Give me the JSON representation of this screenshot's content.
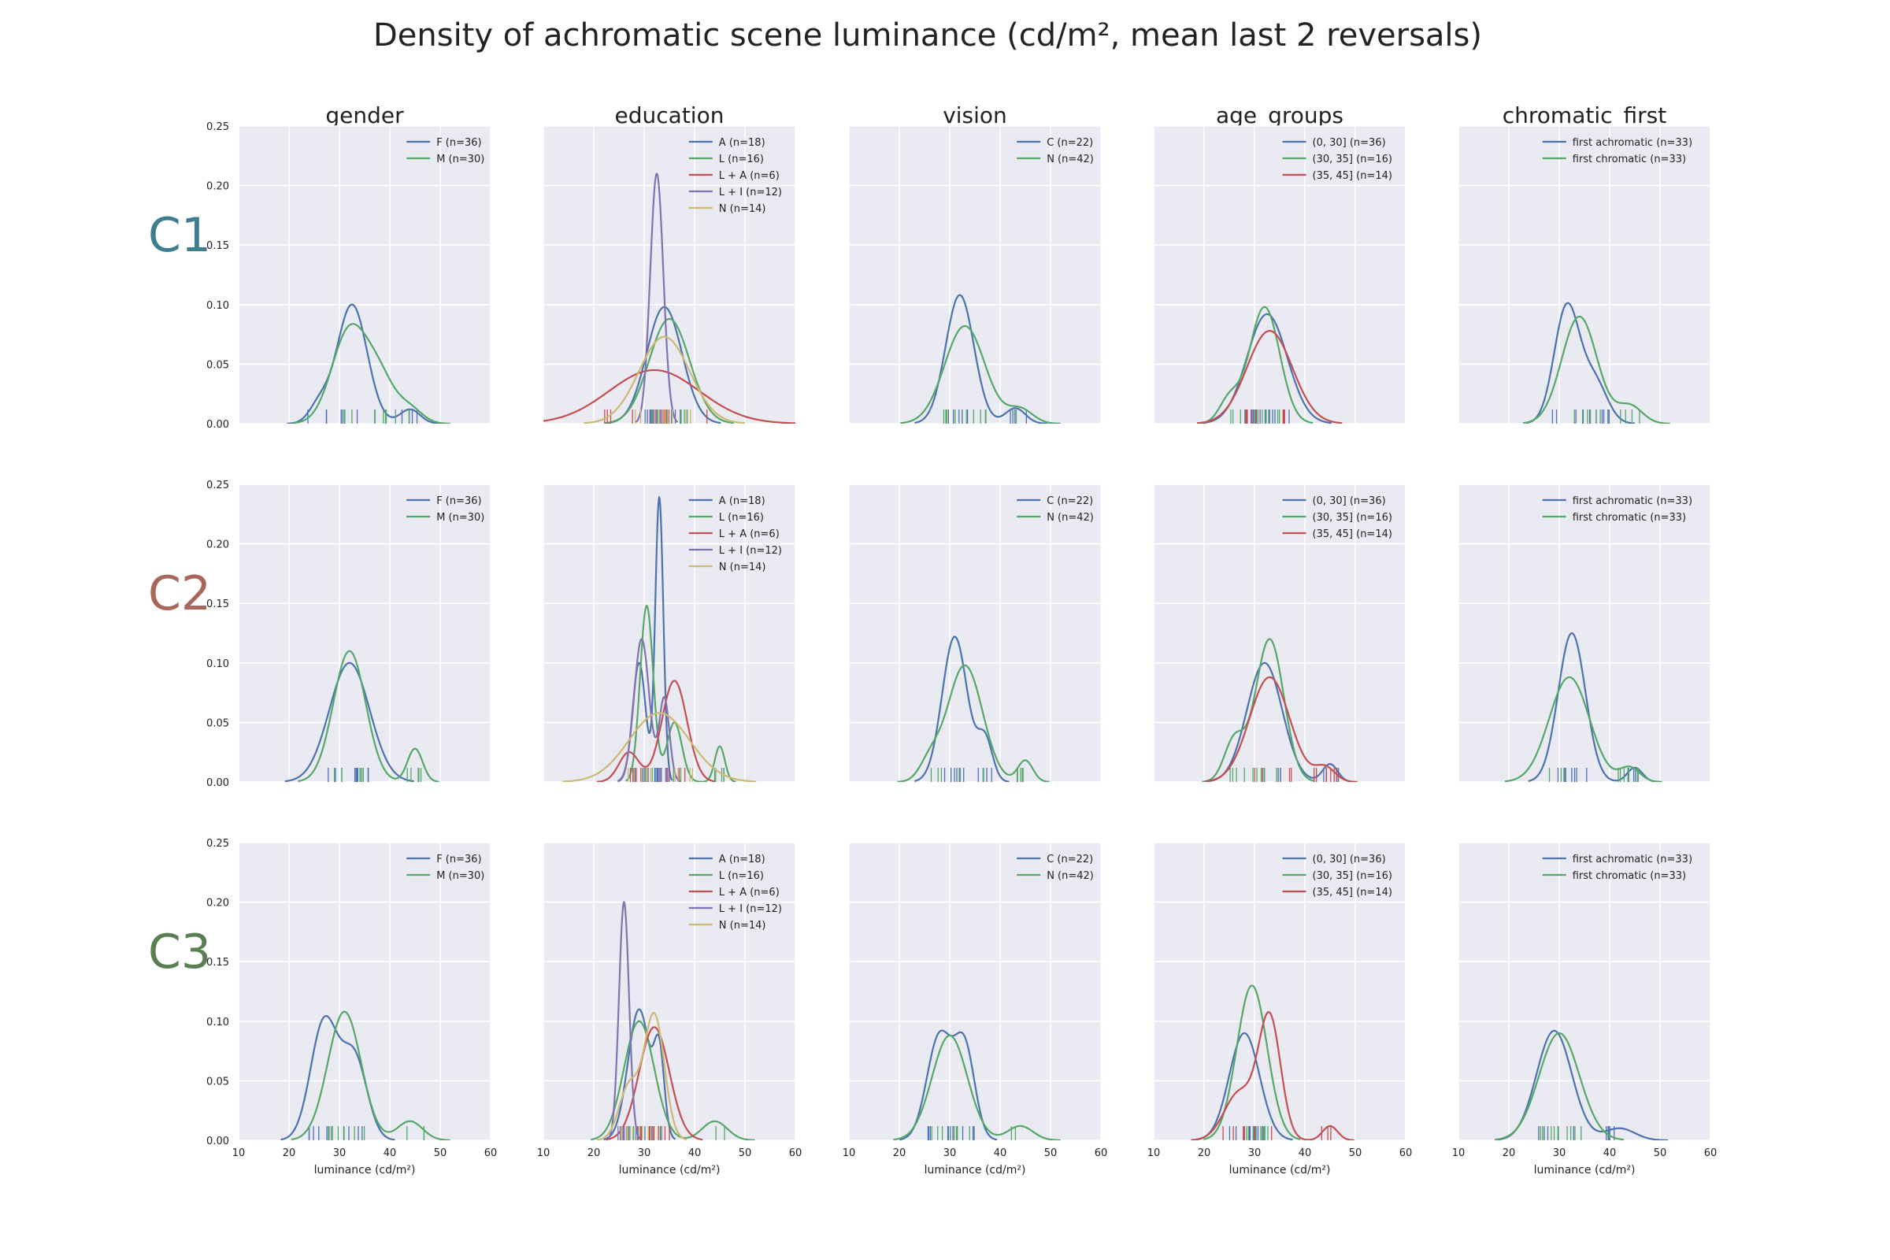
{
  "figure": {
    "title": "Density of achromatic scene luminance (cd/m², mean last 2 reversals)",
    "columns": [
      "gender",
      "education",
      "vision",
      "age_groups",
      "chromatic_first"
    ],
    "rows": [
      {
        "label": "C1",
        "color": "#3e7f8f"
      },
      {
        "label": "C2",
        "color": "#a8675a"
      },
      {
        "label": "C3",
        "color": "#5a7f52"
      }
    ],
    "xlabel": "luminance (cd/m²)",
    "xticks": [
      10,
      20,
      30,
      40,
      50,
      60
    ],
    "yticks": [
      "0.00",
      "0.05",
      "0.10",
      "0.15",
      "0.20",
      "0.25"
    ],
    "xlim": [
      10,
      60
    ],
    "ylim": [
      0,
      0.25
    ],
    "background": "#eaeaf2",
    "grid": true,
    "legend_placement": "upper right"
  },
  "chart_data": [
    {
      "type": "line",
      "row": "C1",
      "column": "gender",
      "series": [
        {
          "name": "F (n=36)",
          "color": "#4c72b0",
          "peaks": [
            [
              26,
              0.015,
              2
            ],
            [
              32.5,
              0.1,
              3
            ],
            [
              44,
              0.012,
              2
            ]
          ]
        },
        {
          "name": "M (n=30)",
          "color": "#55a868",
          "peaks": [
            [
              32,
              0.078,
              3.5
            ],
            [
              38,
              0.035,
              3
            ],
            [
              44,
              0.012,
              2.5
            ]
          ]
        }
      ]
    },
    {
      "type": "line",
      "row": "C1",
      "column": "education",
      "series": [
        {
          "name": "A (n=18)",
          "color": "#4c72b0",
          "peaks": [
            [
              34,
              0.098,
              3.5
            ]
          ]
        },
        {
          "name": "L (n=16)",
          "color": "#55a868",
          "peaks": [
            [
              35,
              0.088,
              4
            ]
          ]
        },
        {
          "name": "L + A (n=6)",
          "color": "#c44e52",
          "peaks": [
            [
              32,
              0.045,
              9
            ]
          ]
        },
        {
          "name": "L + I (n=12)",
          "color": "#8172b2",
          "peaks": [
            [
              32.5,
              0.21,
              1.3
            ]
          ]
        },
        {
          "name": "N (n=14)",
          "color": "#ccb974",
          "peaks": [
            [
              34,
              0.073,
              5
            ]
          ]
        }
      ]
    },
    {
      "type": "line",
      "row": "C1",
      "column": "vision",
      "series": [
        {
          "name": "C (n=22)",
          "color": "#4c72b0",
          "peaks": [
            [
              32,
              0.108,
              2.8
            ],
            [
              43,
              0.013,
              2
            ]
          ]
        },
        {
          "name": "N (n=42)",
          "color": "#55a868",
          "peaks": [
            [
              33,
              0.082,
              4
            ],
            [
              44,
              0.012,
              2.5
            ]
          ]
        }
      ]
    },
    {
      "type": "line",
      "row": "C1",
      "column": "age_groups",
      "series": [
        {
          "name": "(0, 30] (n=36)",
          "color": "#4c72b0",
          "peaks": [
            [
              32.5,
              0.092,
              4
            ]
          ]
        },
        {
          "name": "(30, 35] (n=16)",
          "color": "#55a868",
          "peaks": [
            [
              32,
              0.098,
              3
            ],
            [
              25,
              0.02,
              2
            ]
          ]
        },
        {
          "name": "(35, 45] (n=14)",
          "color": "#c44e52",
          "peaks": [
            [
              33,
              0.078,
              4.5
            ]
          ]
        }
      ]
    },
    {
      "type": "line",
      "row": "C1",
      "column": "chromatic_first",
      "series": [
        {
          "name": "first achromatic (n=33)",
          "color": "#4c72b0",
          "peaks": [
            [
              31.5,
              0.098,
              2.5
            ],
            [
              37,
              0.035,
              2.5
            ]
          ]
        },
        {
          "name": "first chromatic (n=33)",
          "color": "#55a868",
          "peaks": [
            [
              34,
              0.09,
              3.5
            ],
            [
              44,
              0.015,
              2.5
            ]
          ]
        }
      ]
    },
    {
      "type": "line",
      "row": "C2",
      "column": "gender",
      "series": [
        {
          "name": "F (n=36)",
          "color": "#4c72b0",
          "peaks": [
            [
              32,
              0.1,
              4
            ]
          ]
        },
        {
          "name": "M (n=30)",
          "color": "#55a868",
          "peaks": [
            [
              32,
              0.11,
              3.2
            ],
            [
              45,
              0.028,
              1.5
            ]
          ]
        }
      ]
    },
    {
      "type": "line",
      "row": "C2",
      "column": "education",
      "series": [
        {
          "name": "A (n=18)",
          "color": "#4c72b0",
          "peaks": [
            [
              33,
              0.238,
              0.8
            ],
            [
              29,
              0.1,
              1.3
            ]
          ]
        },
        {
          "name": "L (n=16)",
          "color": "#55a868",
          "peaks": [
            [
              30.5,
              0.148,
              1.3
            ],
            [
              36,
              0.05,
              1.5
            ],
            [
              45,
              0.03,
              1
            ]
          ]
        },
        {
          "name": "L + A (n=6)",
          "color": "#c44e52",
          "peaks": [
            [
              36,
              0.085,
              2.5
            ],
            [
              27,
              0.025,
              2
            ]
          ]
        },
        {
          "name": "L + I (n=12)",
          "color": "#8172b2",
          "peaks": [
            [
              29.5,
              0.12,
              1.5
            ],
            [
              34,
              0.07,
              1
            ]
          ]
        },
        {
          "name": "N (n=14)",
          "color": "#ccb974",
          "peaks": [
            [
              33,
              0.058,
              6
            ]
          ]
        }
      ]
    },
    {
      "type": "line",
      "row": "C2",
      "column": "vision",
      "series": [
        {
          "name": "C (n=22)",
          "color": "#4c72b0",
          "peaks": [
            [
              31,
              0.122,
              2.5
            ],
            [
              37,
              0.035,
              1.5
            ]
          ]
        },
        {
          "name": "N (n=42)",
          "color": "#55a868",
          "peaks": [
            [
              33,
              0.098,
              3.5
            ],
            [
              26,
              0.015,
              2
            ],
            [
              45,
              0.018,
              1.5
            ]
          ]
        }
      ]
    },
    {
      "type": "line",
      "row": "C2",
      "column": "age_groups",
      "series": [
        {
          "name": "(0, 30] (n=36)",
          "color": "#4c72b0",
          "peaks": [
            [
              32,
              0.1,
              3.5
            ],
            [
              45,
              0.015,
              1.5
            ]
          ]
        },
        {
          "name": "(30, 35] (n=16)",
          "color": "#55a868",
          "peaks": [
            [
              33,
              0.12,
              2.8
            ],
            [
              26,
              0.035,
              2
            ]
          ]
        },
        {
          "name": "(35, 45] (n=14)",
          "color": "#c44e52",
          "peaks": [
            [
              33,
              0.088,
              4
            ],
            [
              44,
              0.012,
              2
            ]
          ]
        }
      ]
    },
    {
      "type": "line",
      "row": "C2",
      "column": "chromatic_first",
      "series": [
        {
          "name": "first achromatic (n=33)",
          "color": "#4c72b0",
          "peaks": [
            [
              32.5,
              0.125,
              2.7
            ],
            [
              45,
              0.012,
              1.5
            ]
          ]
        },
        {
          "name": "first chromatic (n=33)",
          "color": "#55a868",
          "peaks": [
            [
              32,
              0.088,
              4
            ],
            [
              44,
              0.012,
              2
            ]
          ]
        }
      ]
    },
    {
      "type": "line",
      "row": "C3",
      "column": "gender",
      "series": [
        {
          "name": "F (n=36)",
          "color": "#4c72b0",
          "peaks": [
            [
              27,
              0.1,
              2.7
            ],
            [
              33,
              0.068,
              2.5
            ]
          ]
        },
        {
          "name": "M (n=30)",
          "color": "#55a868",
          "peaks": [
            [
              31,
              0.108,
              3.3
            ],
            [
              44,
              0.016,
              2.5
            ]
          ]
        }
      ]
    },
    {
      "type": "line",
      "row": "C3",
      "column": "education",
      "series": [
        {
          "name": "A (n=18)",
          "color": "#4c72b0",
          "peaks": [
            [
              29,
              0.11,
              2.2
            ],
            [
              33,
              0.065,
              1
            ]
          ]
        },
        {
          "name": "L (n=16)",
          "color": "#55a868",
          "peaks": [
            [
              29,
              0.1,
              3
            ],
            [
              44,
              0.016,
              2.5
            ]
          ]
        },
        {
          "name": "L + A (n=6)",
          "color": "#c44e52",
          "peaks": [
            [
              32,
              0.095,
              3
            ]
          ]
        },
        {
          "name": "L + I (n=12)",
          "color": "#8172b2",
          "peaks": [
            [
              26,
              0.2,
              1
            ]
          ]
        },
        {
          "name": "N (n=14)",
          "color": "#ccb974",
          "peaks": [
            [
              32,
              0.105,
              2
            ],
            [
              27,
              0.045,
              2
            ]
          ]
        }
      ]
    },
    {
      "type": "line",
      "row": "C3",
      "column": "vision",
      "series": [
        {
          "name": "C (n=22)",
          "color": "#4c72b0",
          "peaks": [
            [
              28,
              0.088,
              2.5
            ],
            [
              33,
              0.075,
              2
            ]
          ]
        },
        {
          "name": "N (n=42)",
          "color": "#55a868",
          "peaks": [
            [
              30,
              0.088,
              3.5
            ],
            [
              44,
              0.012,
              2.5
            ]
          ]
        }
      ]
    },
    {
      "type": "line",
      "row": "C3",
      "column": "age_groups",
      "series": [
        {
          "name": "(0, 30] (n=36)",
          "color": "#4c72b0",
          "peaks": [
            [
              28,
              0.09,
              3
            ]
          ]
        },
        {
          "name": "(30, 35] (n=16)",
          "color": "#55a868",
          "peaks": [
            [
              29.5,
              0.13,
              3
            ]
          ]
        },
        {
          "name": "(35, 45] (n=14)",
          "color": "#c44e52",
          "peaks": [
            [
              33,
              0.102,
              2.2
            ],
            [
              27,
              0.04,
              3
            ],
            [
              45,
              0.012,
              1.5
            ]
          ]
        }
      ]
    },
    {
      "type": "line",
      "row": "C3",
      "column": "chromatic_first",
      "series": [
        {
          "name": "first achromatic (n=33)",
          "color": "#4c72b0",
          "peaks": [
            [
              29,
              0.092,
              3.5
            ],
            [
              42,
              0.01,
              3
            ]
          ]
        },
        {
          "name": "first chromatic (n=33)",
          "color": "#55a868",
          "peaks": [
            [
              30,
              0.09,
              4
            ]
          ]
        }
      ]
    }
  ]
}
